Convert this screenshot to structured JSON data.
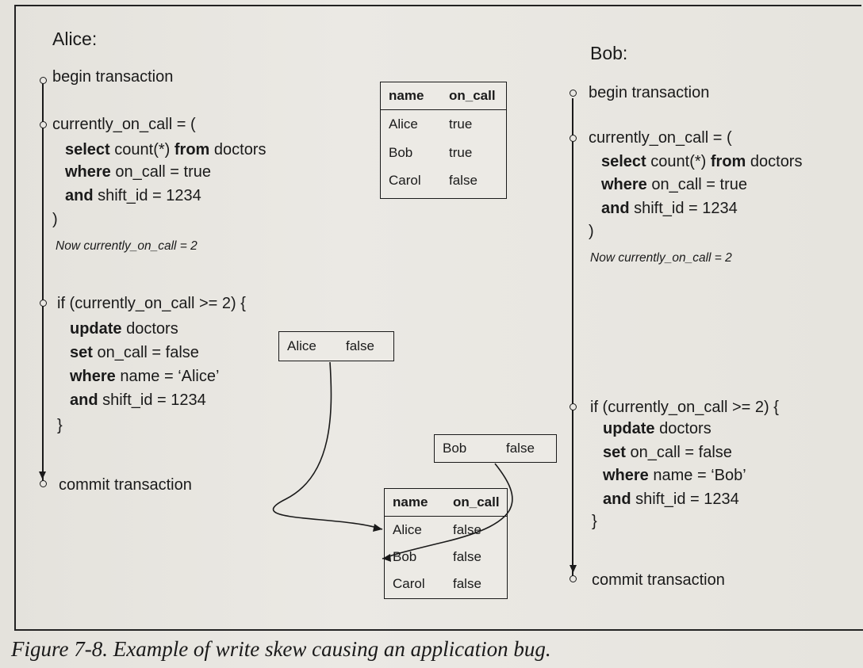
{
  "alice": {
    "title": "Alice:",
    "begin": "begin transaction",
    "query": {
      "assign": "currently_on_call = (",
      "kw_select": "select",
      "select_rest": " count(*) ",
      "kw_from": "from",
      "from_rest": " doctors",
      "kw_where": "where",
      "where_rest": " on_call = true",
      "kw_and": "and",
      "and_rest": " shift_id = 1234",
      "close": ")"
    },
    "note": "Now currently_on_call = 2",
    "cond": {
      "if_line": "if (currently_on_call >= 2) {",
      "kw_update": "update",
      "update_rest": " doctors",
      "kw_set": "set",
      "set_rest": " on_call = false",
      "kw_where": "where",
      "where_rest": " name = ‘Alice’",
      "kw_and": "and",
      "and_rest": " shift_id = 1234",
      "close": "}"
    },
    "commit": "commit transaction"
  },
  "bob": {
    "title": "Bob:",
    "begin": "begin transaction",
    "query": {
      "assign": "currently_on_call = (",
      "kw_select": "select",
      "select_rest": " count(*) ",
      "kw_from": "from",
      "from_rest": " doctors",
      "kw_where": "where",
      "where_rest": " on_call = true",
      "kw_and": "and",
      "and_rest": " shift_id = 1234",
      "close": ")"
    },
    "note": "Now currently_on_call = 2",
    "cond": {
      "if_line": "if (currently_on_call >= 2) {",
      "kw_update": "update",
      "update_rest": " doctors",
      "kw_set": "set",
      "set_rest": " on_call = false",
      "kw_where": "where",
      "where_rest": " name = ‘Bob’",
      "kw_and": "and",
      "and_rest": " shift_id = 1234",
      "close": "}"
    },
    "commit": "commit transaction"
  },
  "table_before": {
    "headers": [
      "name",
      "on_call"
    ],
    "rows": [
      [
        "Alice",
        "true"
      ],
      [
        "Bob",
        "true"
      ],
      [
        "Carol",
        "false"
      ]
    ]
  },
  "table_after": {
    "headers": [
      "name",
      "on_call"
    ],
    "rows": [
      [
        "Alice",
        "false"
      ],
      [
        "Bob",
        "false"
      ],
      [
        "Carol",
        "false"
      ]
    ]
  },
  "write_alice": {
    "name": "Alice",
    "value": "false"
  },
  "write_bob": {
    "name": "Bob",
    "value": "false"
  },
  "caption": "Figure 7-8. Example of write skew causing an application bug."
}
